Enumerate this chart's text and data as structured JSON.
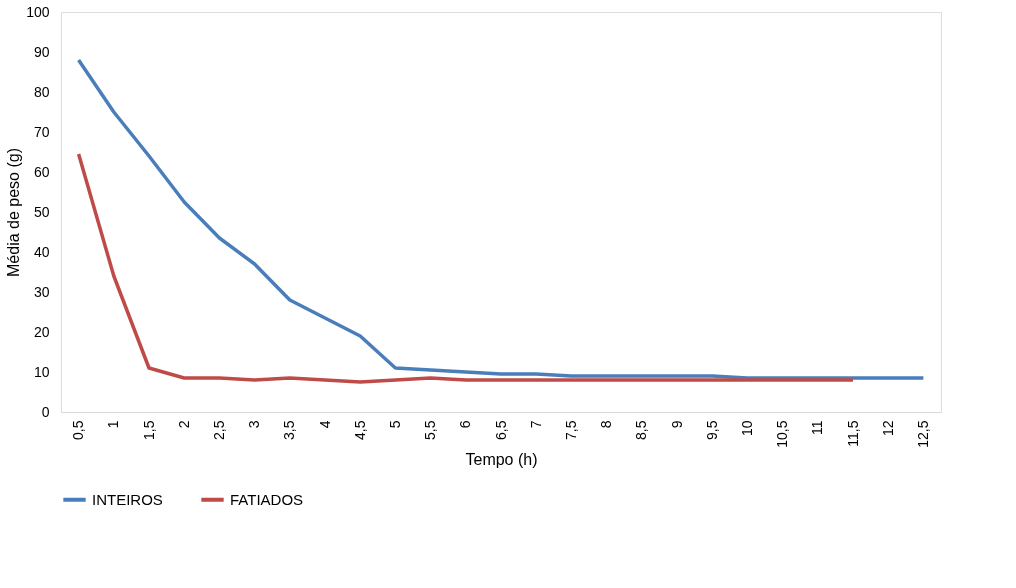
{
  "chart_data": {
    "type": "line",
    "xlabel": "Tempo  (h)",
    "ylabel": "Média de peso (g)",
    "categories": [
      "0,5",
      "1",
      "1,5",
      "2",
      "2,5",
      "3",
      "3,5",
      "4",
      "4,5",
      "5",
      "5,5",
      "6",
      "6,5",
      "7",
      "7,5",
      "8",
      "8,5",
      "9",
      "9,5",
      "10",
      "10,5",
      "11",
      "11,5",
      "12",
      "12,5"
    ],
    "series": [
      {
        "name": "INTEIROS",
        "color": "#4a7ebb",
        "values": [
          88,
          75,
          64,
          52.5,
          43.5,
          37,
          28,
          23.5,
          19,
          11,
          10.5,
          10,
          9.5,
          9.5,
          9,
          9,
          9,
          9,
          9,
          8.5,
          8.5,
          8.5,
          8.5,
          8.5,
          8.5
        ]
      },
      {
        "name": "FATIADOS",
        "color": "#be4b48",
        "values": [
          64.5,
          34,
          11,
          8.5,
          8.5,
          8,
          8.5,
          8,
          7.5,
          8,
          8.5,
          8,
          8,
          8,
          8,
          8,
          8,
          8,
          8,
          8,
          8,
          8,
          8,
          null,
          null
        ]
      }
    ],
    "ylim": [
      0,
      100
    ],
    "yticks": [
      0,
      10,
      20,
      30,
      40,
      50,
      60,
      70,
      80,
      90,
      100
    ],
    "grid": false,
    "legend": "bottom",
    "marker": "none",
    "line_style": "solid"
  }
}
